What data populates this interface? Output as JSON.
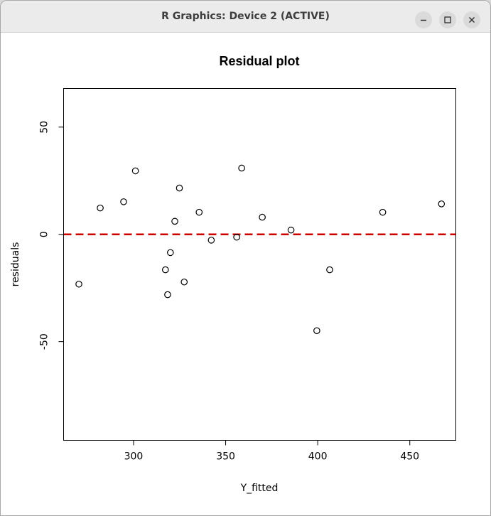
{
  "window": {
    "title": "R Graphics: Device 2 (ACTIVE)",
    "buttons": [
      "minimize-icon",
      "maximize-icon",
      "close-icon"
    ]
  },
  "chart_data": {
    "type": "scatter",
    "title": "Residual plot",
    "xlabel": "Y_fitted",
    "ylabel": "residuals",
    "xlim": [
      262,
      475
    ],
    "ylim": [
      -96,
      68
    ],
    "xticks": [
      300,
      350,
      400,
      450
    ],
    "yticks": [
      50,
      0,
      -50
    ],
    "grid": false,
    "reference_line": {
      "y": 0,
      "color": "#cc0000",
      "style": "dashed"
    },
    "points": [
      {
        "x": 270.3,
        "y": -23.2
      },
      {
        "x": 281.9,
        "y": 12.3
      },
      {
        "x": 294.6,
        "y": 15.2
      },
      {
        "x": 301.0,
        "y": 29.6
      },
      {
        "x": 317.3,
        "y": -16.5
      },
      {
        "x": 318.5,
        "y": -28.1
      },
      {
        "x": 320.0,
        "y": -8.5
      },
      {
        "x": 322.4,
        "y": 6.1
      },
      {
        "x": 324.9,
        "y": 21.6
      },
      {
        "x": 327.5,
        "y": -22.2
      },
      {
        "x": 335.6,
        "y": 10.3
      },
      {
        "x": 342.2,
        "y": -2.7
      },
      {
        "x": 356.0,
        "y": -1.3
      },
      {
        "x": 358.7,
        "y": 30.9
      },
      {
        "x": 369.9,
        "y": 8.0
      },
      {
        "x": 385.5,
        "y": 2.0
      },
      {
        "x": 399.5,
        "y": -44.9
      },
      {
        "x": 406.5,
        "y": -16.5
      },
      {
        "x": 435.3,
        "y": 10.3
      },
      {
        "x": 467.2,
        "y": 14.2
      }
    ]
  }
}
